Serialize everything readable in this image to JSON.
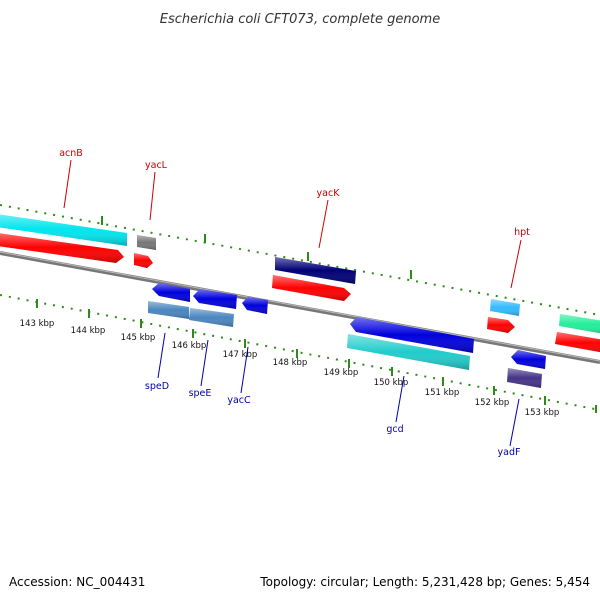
{
  "title": "Escherichia coli CFT073, complete genome",
  "footer": {
    "accession": "Accession: NC_004431",
    "topology": "Topology: circular; Length: 5,231,428 bp; Genes: 5,454"
  },
  "colors": {
    "backbone": "#777777",
    "tick": "#2e8b1a",
    "label_top": "#cc0000",
    "label_bottom": "#0000aa"
  },
  "ticks": [
    "143 kbp",
    "144 kbp",
    "145 kbp",
    "146 kbp",
    "147 kbp",
    "148 kbp",
    "149 kbp",
    "150 kbp",
    "151 kbp",
    "152 kbp",
    "153 kbp"
  ],
  "labels_top": [
    "acnB",
    "yacL",
    "yacK",
    "hpt"
  ],
  "labels_bottom": [
    "speD",
    "speE",
    "yacC",
    "gcd",
    "yadF"
  ]
}
